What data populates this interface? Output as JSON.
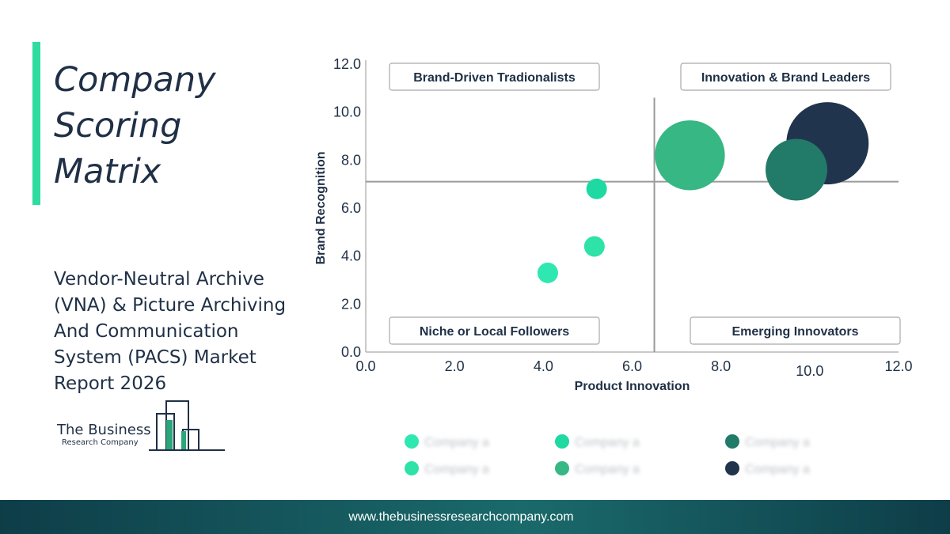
{
  "title": "Company Scoring Matrix",
  "subtitle": "Vendor-Neutral Archive (VNA) & Picture Archiving And Communication System (PACS) Market Report 2026",
  "logo": {
    "name": "The Business",
    "sub": "Research Company"
  },
  "footer": {
    "url": "www.thebusinessresearchcompany.com"
  },
  "colors": {
    "accent": "#2fdca0",
    "text": "#1f3046",
    "footer": "#0e3d48"
  },
  "chart_data": {
    "type": "scatter",
    "xlabel": "Product Innovation",
    "ylabel": "Brand Recognition",
    "xlim": [
      0,
      12
    ],
    "ylim": [
      0,
      12
    ],
    "x_ticks": [
      "0.0",
      "2.0",
      "4.0",
      "6.0",
      "8.0",
      "10.0",
      "12.0"
    ],
    "y_ticks": [
      "0.0",
      "2.0",
      "4.0",
      "6.0",
      "8.0",
      "10.0",
      "12.0"
    ],
    "divider": {
      "x": 6.5,
      "y": 7.1
    },
    "quadrants": [
      {
        "label": "Brand-Driven Tradionalists",
        "position": "top-left"
      },
      {
        "label": "Innovation & Brand Leaders",
        "position": "top-right"
      },
      {
        "label": "Niche or Local Followers",
        "position": "bottom-left"
      },
      {
        "label": "Emerging Innovators",
        "position": "bottom-right"
      }
    ],
    "points": [
      {
        "x": 4.1,
        "y": 3.3,
        "size": 1.0,
        "color": "#2fe7b0"
      },
      {
        "x": 5.15,
        "y": 4.4,
        "size": 1.0,
        "color": "#2ee2a8"
      },
      {
        "x": 5.2,
        "y": 6.8,
        "size": 1.0,
        "color": "#1ed9a2"
      },
      {
        "x": 7.3,
        "y": 8.2,
        "size": 3.4,
        "color": "#36b784"
      },
      {
        "x": 10.4,
        "y": 8.7,
        "size": 4.0,
        "color": "#21344d"
      },
      {
        "x": 9.7,
        "y": 7.6,
        "size": 3.0,
        "color": "#227a68"
      }
    ],
    "legend": {
      "position": "bottom",
      "items": [
        {
          "label": "Company a",
          "color": "#2fe7b0"
        },
        {
          "label": "Company a",
          "color": "#1ed9a2"
        },
        {
          "label": "Company a",
          "color": "#227a68"
        },
        {
          "label": "Company a",
          "color": "#2ee2a8"
        },
        {
          "label": "Company a",
          "color": "#36b784"
        },
        {
          "label": "Company a",
          "color": "#21344d"
        }
      ]
    }
  }
}
